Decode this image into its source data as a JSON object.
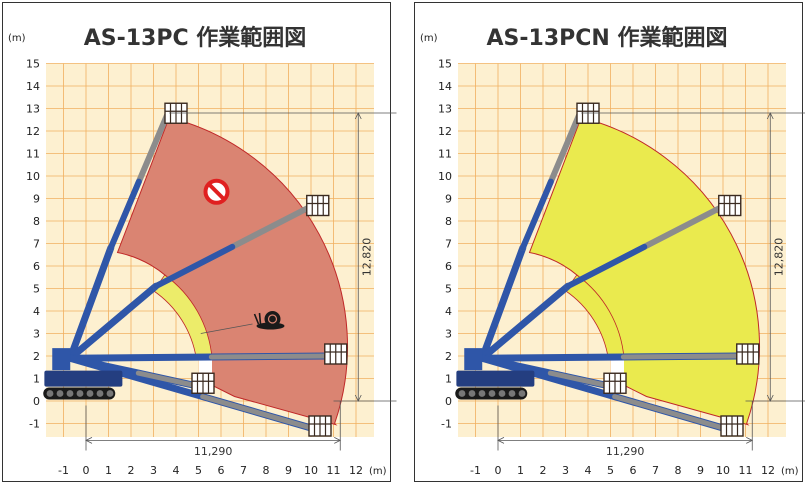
{
  "panels": [
    {
      "id": "pc",
      "title": "AS-13PC 作業範囲図",
      "unit_label": "(m)",
      "zone_color": "#da8472",
      "inner_band_color": "#ecec6a",
      "show_prohibited_icon": true,
      "show_snail_icon": true
    },
    {
      "id": "pcn",
      "title": "AS-13PCN 作業範囲図",
      "unit_label": "(m)",
      "zone_color": "#eaea4e",
      "inner_band_color": "#eaea4e",
      "show_prohibited_icon": false,
      "show_snail_icon": false
    }
  ],
  "axes": {
    "x_ticks": [
      "-1",
      "0",
      "1",
      "2",
      "3",
      "4",
      "5",
      "6",
      "7",
      "8",
      "9",
      "10",
      "11",
      "12"
    ],
    "x_unit": "(m)",
    "y_ticks": [
      "-1",
      "0",
      "1",
      "2",
      "3",
      "4",
      "5",
      "6",
      "7",
      "8",
      "9",
      "10",
      "11",
      "12",
      "13",
      "14",
      "15"
    ]
  },
  "dimensions": {
    "height_label": "12,820",
    "reach_label": "11,290"
  },
  "colors": {
    "grid_bg": "#fdf0d0",
    "grid_line": "#f0b060",
    "boom_gray": "#8c8c8c",
    "boom_blue": "#2f56a8",
    "bucket": "#3a2a20"
  }
}
